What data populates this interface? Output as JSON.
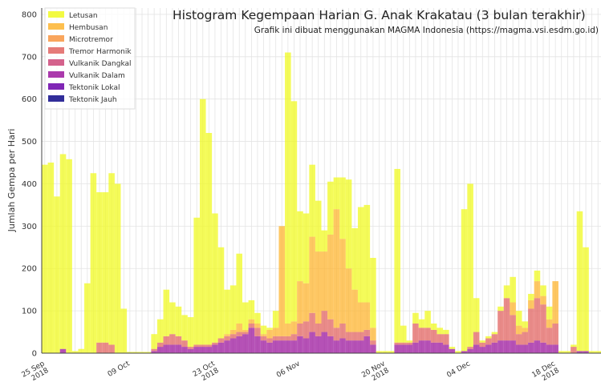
{
  "chart_data": {
    "type": "stacked-bar",
    "title": "Histogram Kegempaan Harian G. Anak Krakatau (3 bulan terakhir)",
    "subtitle": "Grafik ini dibuat menggunakan MAGMA Indonesia (https://magma.vsi.esdm.go.id)",
    "y_label": "Jumlah Gempa per Hari",
    "categories": [
      "25 Sep\n2018",
      null,
      null,
      null,
      null,
      null,
      null,
      null,
      null,
      null,
      null,
      null,
      null,
      null,
      "09 Oct",
      null,
      null,
      null,
      null,
      null,
      null,
      null,
      null,
      null,
      null,
      null,
      null,
      null,
      "23 Oct\n2018",
      null,
      null,
      null,
      null,
      null,
      null,
      null,
      null,
      null,
      null,
      null,
      null,
      null,
      "06 Nov",
      null,
      null,
      null,
      null,
      null,
      null,
      null,
      null,
      null,
      null,
      null,
      null,
      null,
      "20 Nov\n2018",
      null,
      null,
      null,
      null,
      null,
      null,
      null,
      null,
      null,
      null,
      null,
      null,
      null,
      "04 Dec",
      null,
      null,
      null,
      null,
      null,
      null,
      null,
      null,
      null,
      null,
      null,
      null,
      null,
      "18 Dec\n2018",
      null,
      null,
      null,
      null,
      null,
      null,
      null
    ],
    "ylim": [
      0,
      815
    ],
    "yticks": [
      0,
      100,
      200,
      300,
      400,
      500,
      600,
      700,
      800
    ],
    "grid": true,
    "legend": "upper-left",
    "series": [
      {
        "name": "Letusan",
        "color": "#f0f921",
        "values": [
          445,
          450,
          370,
          460,
          458,
          5,
          10,
          165,
          425,
          355,
          355,
          405,
          400,
          105,
          3,
          3,
          3,
          3,
          35,
          55,
          110,
          75,
          70,
          60,
          70,
          300,
          580,
          500,
          305,
          215,
          105,
          105,
          165,
          65,
          45,
          25,
          20,
          5,
          40,
          0,
          640,
          520,
          165,
          165,
          170,
          120,
          50,
          125,
          75,
          145,
          210,
          145,
          225,
          230,
          165,
          5,
          5,
          5,
          410,
          40,
          5,
          25,
          20,
          40,
          15,
          15,
          10,
          5,
          5,
          335,
          385,
          80,
          5,
          5,
          5,
          10,
          30,
          60,
          35,
          15,
          15,
          25,
          25,
          30,
          0,
          5,
          5,
          5,
          330,
          245,
          5,
          5
        ]
      },
      {
        "name": "Hembusan",
        "color": "#fdb42f",
        "values": [
          0,
          0,
          0,
          0,
          0,
          0,
          0,
          0,
          0,
          0,
          0,
          0,
          0,
          0,
          0,
          0,
          0,
          0,
          0,
          0,
          0,
          0,
          0,
          0,
          0,
          0,
          0,
          0,
          0,
          0,
          5,
          10,
          20,
          5,
          10,
          10,
          5,
          20,
          20,
          260,
          30,
          30,
          100,
          90,
          180,
          170,
          140,
          200,
          280,
          200,
          150,
          100,
          70,
          65,
          30,
          0,
          0,
          0,
          0,
          0,
          0,
          0,
          0,
          0,
          0,
          0,
          0,
          0,
          0,
          0,
          0,
          0,
          0,
          0,
          0,
          0,
          0,
          30,
          20,
          10,
          20,
          40,
          20,
          20,
          100,
          0,
          0,
          0,
          0,
          0,
          0,
          0
        ]
      },
      {
        "name": "Microtremor",
        "color": "#f89540",
        "values": [
          0,
          0,
          0,
          0,
          0,
          0,
          0,
          0,
          0,
          0,
          0,
          0,
          0,
          0,
          0,
          0,
          0,
          0,
          0,
          0,
          0,
          0,
          0,
          0,
          0,
          0,
          0,
          0,
          0,
          0,
          0,
          0,
          0,
          0,
          0,
          0,
          0,
          0,
          0,
          0,
          0,
          0,
          0,
          0,
          0,
          0,
          0,
          0,
          0,
          0,
          0,
          0,
          0,
          0,
          0,
          0,
          0,
          0,
          0,
          0,
          0,
          0,
          0,
          0,
          0,
          0,
          0,
          0,
          0,
          0,
          0,
          0,
          0,
          0,
          0,
          0,
          0,
          0,
          0,
          0,
          0,
          0,
          0,
          0,
          0,
          0,
          0,
          0,
          0,
          0,
          0,
          0
        ]
      },
      {
        "name": "Tremor Harmonik",
        "color": "#e16462",
        "values": [
          0,
          0,
          0,
          0,
          0,
          0,
          0,
          0,
          0,
          25,
          25,
          20,
          0,
          0,
          0,
          0,
          0,
          0,
          5,
          10,
          20,
          25,
          20,
          15,
          5,
          5,
          5,
          5,
          5,
          10,
          10,
          10,
          10,
          5,
          10,
          20,
          10,
          10,
          10,
          10,
          10,
          15,
          30,
          40,
          45,
          30,
          50,
          40,
          30,
          35,
          20,
          20,
          20,
          15,
          10,
          0,
          0,
          0,
          5,
          5,
          5,
          45,
          30,
          30,
          30,
          20,
          25,
          0,
          0,
          0,
          5,
          30,
          10,
          15,
          20,
          70,
          100,
          60,
          25,
          30,
          80,
          100,
          90,
          40,
          50,
          0,
          0,
          15,
          0,
          0,
          0,
          0
        ]
      },
      {
        "name": "Vulkanik Dangkal",
        "color": "#cc4778",
        "values": [
          0,
          0,
          0,
          0,
          0,
          0,
          0,
          0,
          0,
          0,
          0,
          0,
          0,
          0,
          0,
          0,
          0,
          0,
          0,
          0,
          0,
          0,
          0,
          0,
          0,
          0,
          0,
          0,
          0,
          0,
          0,
          0,
          0,
          0,
          0,
          0,
          0,
          0,
          0,
          0,
          0,
          0,
          0,
          0,
          0,
          0,
          0,
          0,
          0,
          0,
          0,
          0,
          0,
          0,
          0,
          0,
          0,
          0,
          0,
          0,
          0,
          0,
          0,
          0,
          0,
          0,
          0,
          0,
          0,
          0,
          0,
          0,
          0,
          0,
          0,
          0,
          0,
          0,
          0,
          0,
          0,
          0,
          0,
          0,
          0,
          0,
          0,
          0,
          0,
          0,
          0,
          0
        ]
      },
      {
        "name": "Vulkanik Dalam",
        "color": "#9c179e",
        "values": [
          0,
          0,
          0,
          10,
          0,
          0,
          0,
          0,
          0,
          0,
          0,
          0,
          0,
          0,
          0,
          0,
          0,
          0,
          5,
          15,
          20,
          20,
          20,
          15,
          10,
          15,
          15,
          15,
          20,
          25,
          30,
          35,
          40,
          45,
          60,
          40,
          30,
          25,
          30,
          30,
          30,
          30,
          40,
          35,
          50,
          40,
          50,
          40,
          30,
          35,
          30,
          30,
          30,
          40,
          20,
          0,
          0,
          0,
          20,
          20,
          20,
          25,
          30,
          30,
          25,
          25,
          20,
          10,
          0,
          5,
          10,
          20,
          15,
          20,
          25,
          30,
          30,
          30,
          20,
          20,
          25,
          30,
          25,
          20,
          20,
          0,
          0,
          0,
          5,
          5,
          0,
          0
        ]
      },
      {
        "name": "Tektonik Lokal",
        "color": "#6a00a8",
        "values": [
          0,
          0,
          0,
          0,
          0,
          0,
          0,
          0,
          0,
          0,
          0,
          0,
          0,
          0,
          0,
          0,
          0,
          0,
          0,
          0,
          0,
          0,
          0,
          0,
          0,
          0,
          0,
          0,
          0,
          0,
          0,
          0,
          0,
          0,
          0,
          0,
          0,
          0,
          0,
          0,
          0,
          0,
          0,
          0,
          0,
          0,
          0,
          0,
          0,
          0,
          0,
          0,
          0,
          0,
          0,
          0,
          0,
          0,
          0,
          0,
          0,
          0,
          0,
          0,
          0,
          0,
          0,
          0,
          0,
          0,
          0,
          0,
          0,
          0,
          0,
          0,
          0,
          0,
          0,
          0,
          0,
          0,
          0,
          0,
          0,
          0,
          0,
          0,
          0,
          0,
          0,
          0
        ]
      },
      {
        "name": "Tektonik Jauh",
        "color": "#0d0887",
        "values": [
          0,
          0,
          0,
          0,
          0,
          0,
          0,
          0,
          0,
          0,
          0,
          0,
          0,
          0,
          0,
          0,
          0,
          0,
          0,
          0,
          0,
          0,
          0,
          0,
          0,
          0,
          0,
          0,
          0,
          0,
          0,
          0,
          0,
          0,
          0,
          0,
          0,
          0,
          0,
          0,
          0,
          0,
          0,
          0,
          0,
          0,
          0,
          0,
          0,
          0,
          0,
          0,
          0,
          0,
          0,
          0,
          0,
          0,
          0,
          0,
          0,
          0,
          0,
          0,
          0,
          0,
          0,
          0,
          0,
          0,
          0,
          0,
          0,
          0,
          0,
          0,
          0,
          0,
          0,
          0,
          0,
          0,
          0,
          0,
          0,
          0,
          0,
          0,
          0,
          0,
          0,
          0
        ]
      }
    ]
  }
}
